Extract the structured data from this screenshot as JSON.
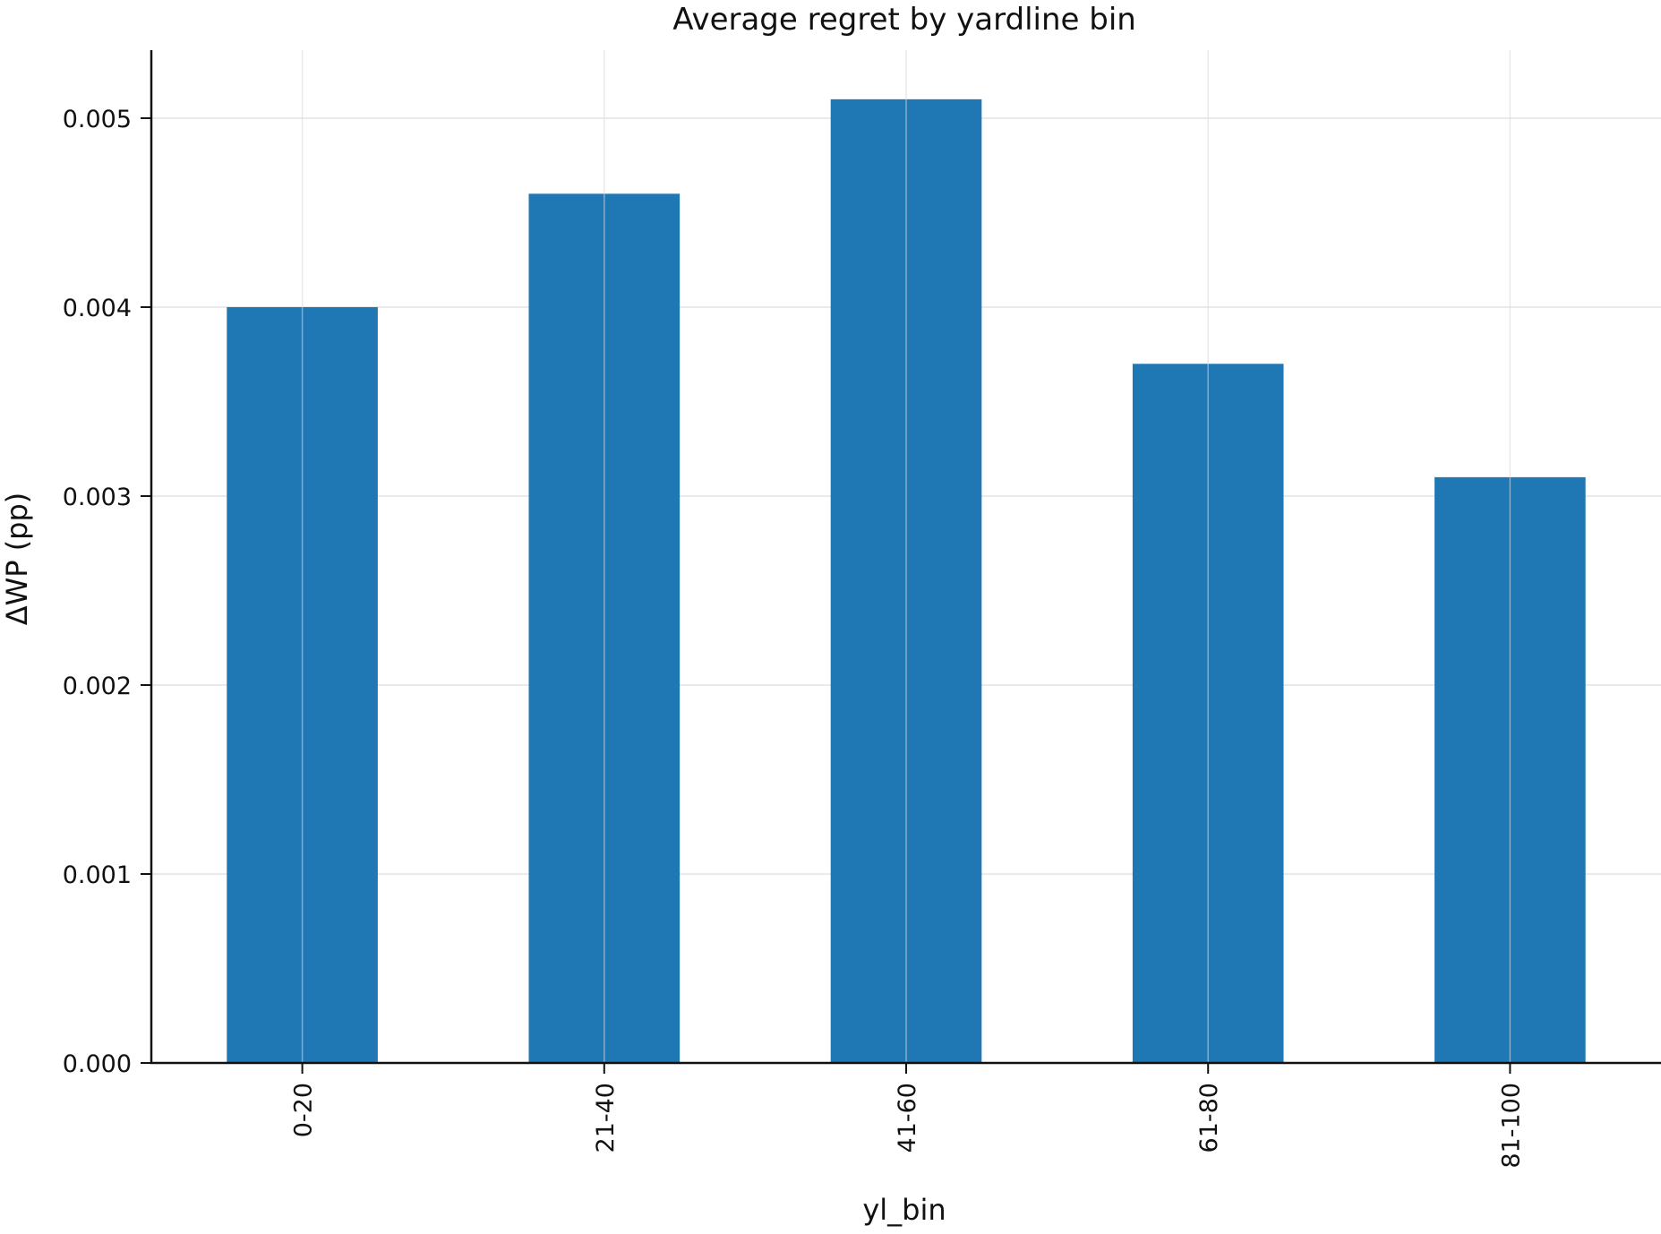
{
  "chart_data": {
    "type": "bar",
    "title": "Average regret by yardline bin",
    "xlabel": "yl_bin",
    "ylabel": "ΔWP (pp)",
    "categories": [
      "0-20",
      "21-40",
      "41-60",
      "61-80",
      "81-100"
    ],
    "values": [
      0.004,
      0.0046,
      0.0051,
      0.0037,
      0.0031
    ],
    "ylim": [
      0,
      0.00536
    ],
    "yticks": [
      {
        "value": 0,
        "label": "0.000"
      },
      {
        "value": 0.001,
        "label": "0.001"
      },
      {
        "value": 0.002,
        "label": "0.002"
      },
      {
        "value": 0.003,
        "label": "0.003"
      },
      {
        "value": 0.004,
        "label": "0.004"
      },
      {
        "value": 0.005,
        "label": "0.005"
      }
    ],
    "grid": true,
    "legend": "none",
    "bar_color": "#1f77b4",
    "x_tick_rotation": "vertical"
  }
}
